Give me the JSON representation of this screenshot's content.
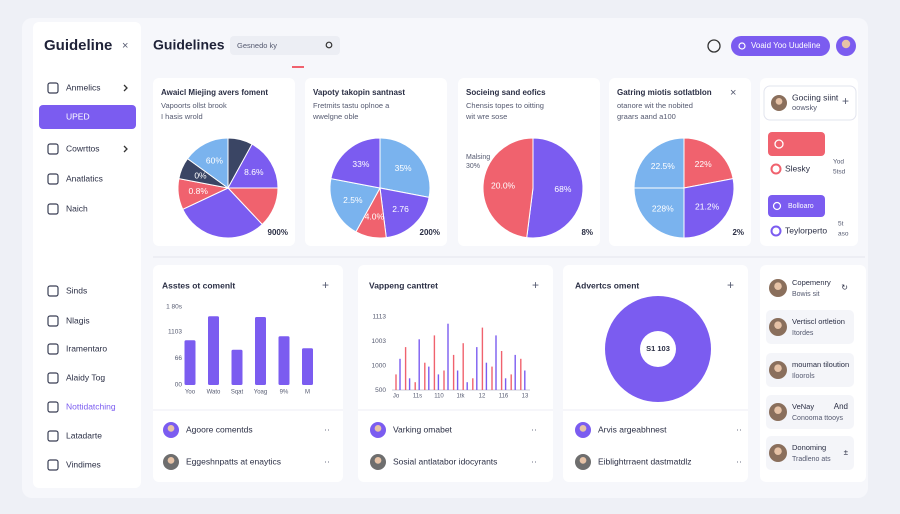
{
  "sidebar": {
    "logo": "Guideline",
    "close": "×",
    "active": 1,
    "accent": 9,
    "nav": [
      {
        "label": "Anmelics",
        "chevron": true
      },
      {
        "label": "UPED",
        "chevron": false
      },
      {
        "label": "Cowrttos",
        "chevron": true
      },
      {
        "label": "Anatlatics",
        "chevron": false
      },
      {
        "label": "Naich",
        "chevron": false
      },
      {
        "label": "Sinds",
        "chevron": false
      },
      {
        "label": "Nlagis",
        "chevron": false
      },
      {
        "label": "Iramentaro",
        "chevron": false
      },
      {
        "label": "Alaidy Tog",
        "chevron": false
      },
      {
        "label": "Nottidatching",
        "chevron": false
      },
      {
        "label": "Latadarte",
        "chevron": false
      },
      {
        "label": "Vindimes",
        "chevron": false
      }
    ]
  },
  "header": {
    "title": "Guidelines",
    "search": "Gesnedo ky",
    "button": "Voaid Yoo Uudeline"
  },
  "pie_cards": [
    {
      "title": "Awaicl Miejing avers foment",
      "lines": [
        "Vapoorts ollst brook",
        "I hasis wrold"
      ],
      "pie": {
        "values": [
          8,
          17,
          13,
          30,
          10,
          7,
          15
        ],
        "colors": [
          "#3a4564",
          "#7b5cf0",
          "#f0626e",
          "#7b5cf0",
          "#f0626e",
          "#3a4564",
          "#7ab3ee"
        ],
        "labels": [
          null,
          "8.6%",
          null,
          null,
          "0.8%",
          "0%",
          "60%"
        ]
      },
      "footer": "900%"
    },
    {
      "title": "Vapoty takopin santnast",
      "lines": [
        "Fretmits tastu oplnoe a",
        "wwelgne oble"
      ],
      "pie": {
        "values": [
          28,
          20,
          10,
          20,
          22
        ],
        "colors": [
          "#7ab3ee",
          "#7b5cf0",
          "#f0626e",
          "#7ab3ee",
          "#7b5cf0"
        ],
        "labels": [
          "35%",
          "2.76",
          "4.0%",
          "2.5%",
          "33%"
        ]
      },
      "footer": "200%"
    },
    {
      "title": "Socieing sand eofics",
      "lines": [
        "Chensis topes to oitting",
        "wit wre sose"
      ],
      "side": [
        "Malsing",
        "30%"
      ],
      "pie": {
        "values": [
          52,
          48
        ],
        "colors": [
          "#7b5cf0",
          "#f0626e"
        ],
        "labels": [
          "68%",
          "20.0%"
        ]
      },
      "footer": "8%"
    },
    {
      "title": "Gatring miotis sotlatblon",
      "lines": [
        "otanore wit the nobited",
        "graars aand a100"
      ],
      "close": "×",
      "pie": {
        "values": [
          22,
          28,
          25,
          25
        ],
        "colors": [
          "#f0626e",
          "#7b5cf0",
          "#7ab3ee",
          "#7ab3ee"
        ],
        "labels": [
          "22%",
          "21.2%",
          "228%",
          "22.5%"
        ]
      },
      "footer": "2%"
    }
  ],
  "side_panel": {
    "title": "Gociing siint",
    "subtitle": "oowsky",
    "plus": "+",
    "red_label": "Slesky",
    "red_note": [
      "Yod",
      "5tsd"
    ],
    "purple_button": "Bolloaro",
    "purple_label": "Teylorperto",
    "purple_note": [
      "5t",
      "aso"
    ]
  },
  "bar_card": {
    "title": "Asstes ot comenlt",
    "plus": "+",
    "ytick_labels": [
      "1 80s",
      "1103",
      "66",
      "00"
    ],
    "ylim": [
      0,
      100
    ],
    "color": "#7b5cf0",
    "categories": [
      "Yoo",
      "Wato",
      "Sqat",
      "Yoag",
      "9%",
      "M"
    ],
    "values": [
      56,
      86,
      44,
      85,
      61,
      46
    ],
    "list": [
      "Agoore comentds",
      "Eggeshnpatts at enaytics"
    ]
  },
  "spike_card": {
    "title": "Vappeng canttret",
    "plus": "+",
    "ytick_labels": [
      "1113",
      "1003",
      "1000",
      "500"
    ],
    "ylim": [
      0,
      100
    ],
    "categories": [
      "Jo",
      "11s",
      "110",
      "1tk",
      "12",
      "116",
      "13"
    ],
    "series": [
      {
        "color": "#f0626e",
        "values": [
          20,
          55,
          10,
          35,
          70,
          25,
          45,
          60,
          15,
          80,
          30,
          50,
          20,
          40
        ]
      },
      {
        "color": "#7b5cf0",
        "values": [
          40,
          15,
          65,
          30,
          20,
          85,
          25,
          10,
          55,
          35,
          70,
          15,
          45,
          25
        ]
      }
    ],
    "list": [
      "Varking omabet",
      "Sosial antlatabor idocyrants"
    ]
  },
  "donut_card": {
    "title": "Advertcs oment",
    "plus": "+",
    "center": "S1 103",
    "list": [
      "Arvis argeabhnest",
      "Eiblightrraent dastmatdlz"
    ]
  },
  "people": [
    {
      "name": "Copemenry",
      "sub": "Bowis sit",
      "action": "↻"
    },
    {
      "name": "Vertiscl ortletion",
      "sub": "Itordes"
    },
    {
      "name": "mouman tiloution",
      "sub": "Iloorols"
    },
    {
      "name": "VeNay",
      "sub": "Conooma ttooys",
      "action": "And"
    },
    {
      "name": "Donoming",
      "sub": "Tradleno ats",
      "action": "±"
    }
  ]
}
